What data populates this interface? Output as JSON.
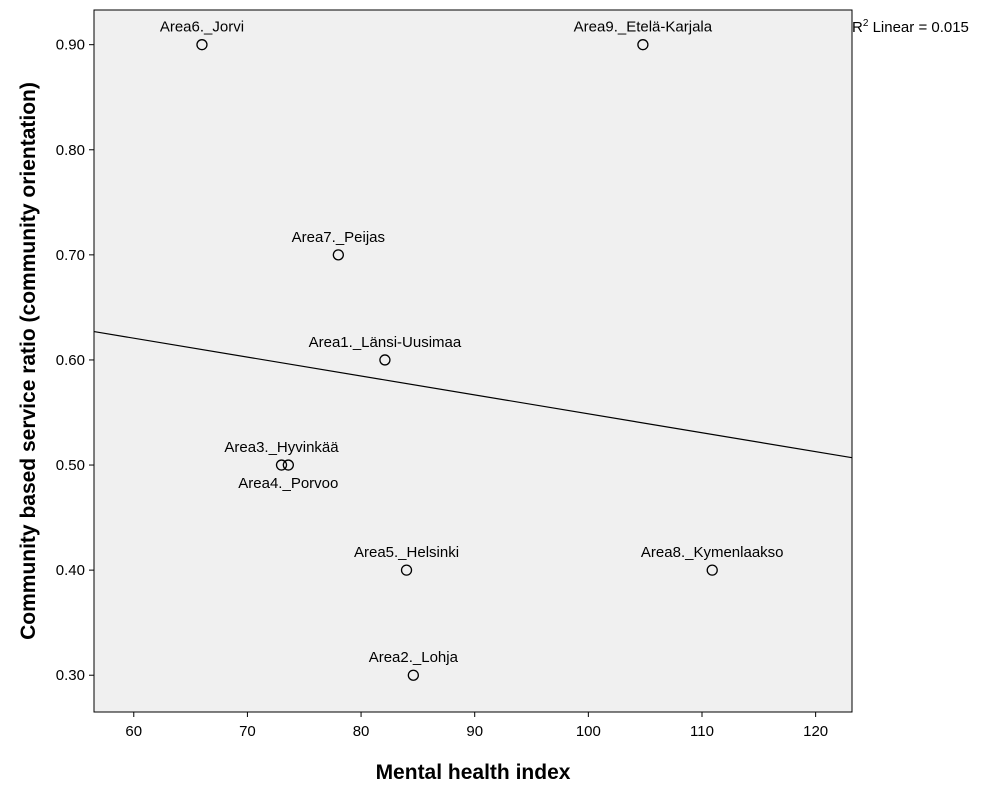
{
  "chart_data": {
    "type": "scatter",
    "xlabel": "Mental health index",
    "ylabel": "Community based service ratio (community orientation)",
    "xlim": [
      56.5,
      123.2
    ],
    "ylim": [
      0.265,
      0.933
    ],
    "x_ticks": [
      60,
      70,
      80,
      90,
      100,
      110,
      120
    ],
    "y_ticks": [
      0.3,
      0.4,
      0.5,
      0.6,
      0.7,
      0.8,
      0.9
    ],
    "y_tick_labels": [
      "0.30",
      "0.40",
      "0.50",
      "0.60",
      "0.70",
      "0.80",
      "0.90"
    ],
    "points": [
      {
        "label": "Area6._Jorvi",
        "x": 66,
        "y": 0.9,
        "label_pos": "above"
      },
      {
        "label": "Area9._Etelä-Karjala",
        "x": 104.8,
        "y": 0.9,
        "label_pos": "above"
      },
      {
        "label": "Area7._Peijas",
        "x": 78,
        "y": 0.7,
        "label_pos": "above"
      },
      {
        "label": "Area1._Länsi-Uusimaa",
        "x": 82.1,
        "y": 0.6,
        "label_pos": "above"
      },
      {
        "label": "Area3._Hyvinkää",
        "x": 73,
        "y": 0.5,
        "label_pos": "above"
      },
      {
        "label": "Area4._Porvoo",
        "x": 73.6,
        "y": 0.5,
        "label_pos": "below"
      },
      {
        "label": "Area5._Helsinki",
        "x": 84,
        "y": 0.4,
        "label_pos": "above"
      },
      {
        "label": "Area8._Kymenlaakso",
        "x": 110.9,
        "y": 0.4,
        "label_pos": "above"
      },
      {
        "label": "Area2._Lohja",
        "x": 84.6,
        "y": 0.3,
        "label_pos": "above"
      }
    ],
    "fit_line": {
      "x": [
        56.5,
        123.2
      ],
      "y": [
        0.627,
        0.507
      ]
    },
    "r2_label": {
      "prefix": "R",
      "superscript": "2",
      "text": " Linear = 0.015"
    },
    "grid": false,
    "plot_background": "#f0f0f0",
    "marker_color": "#000000"
  }
}
